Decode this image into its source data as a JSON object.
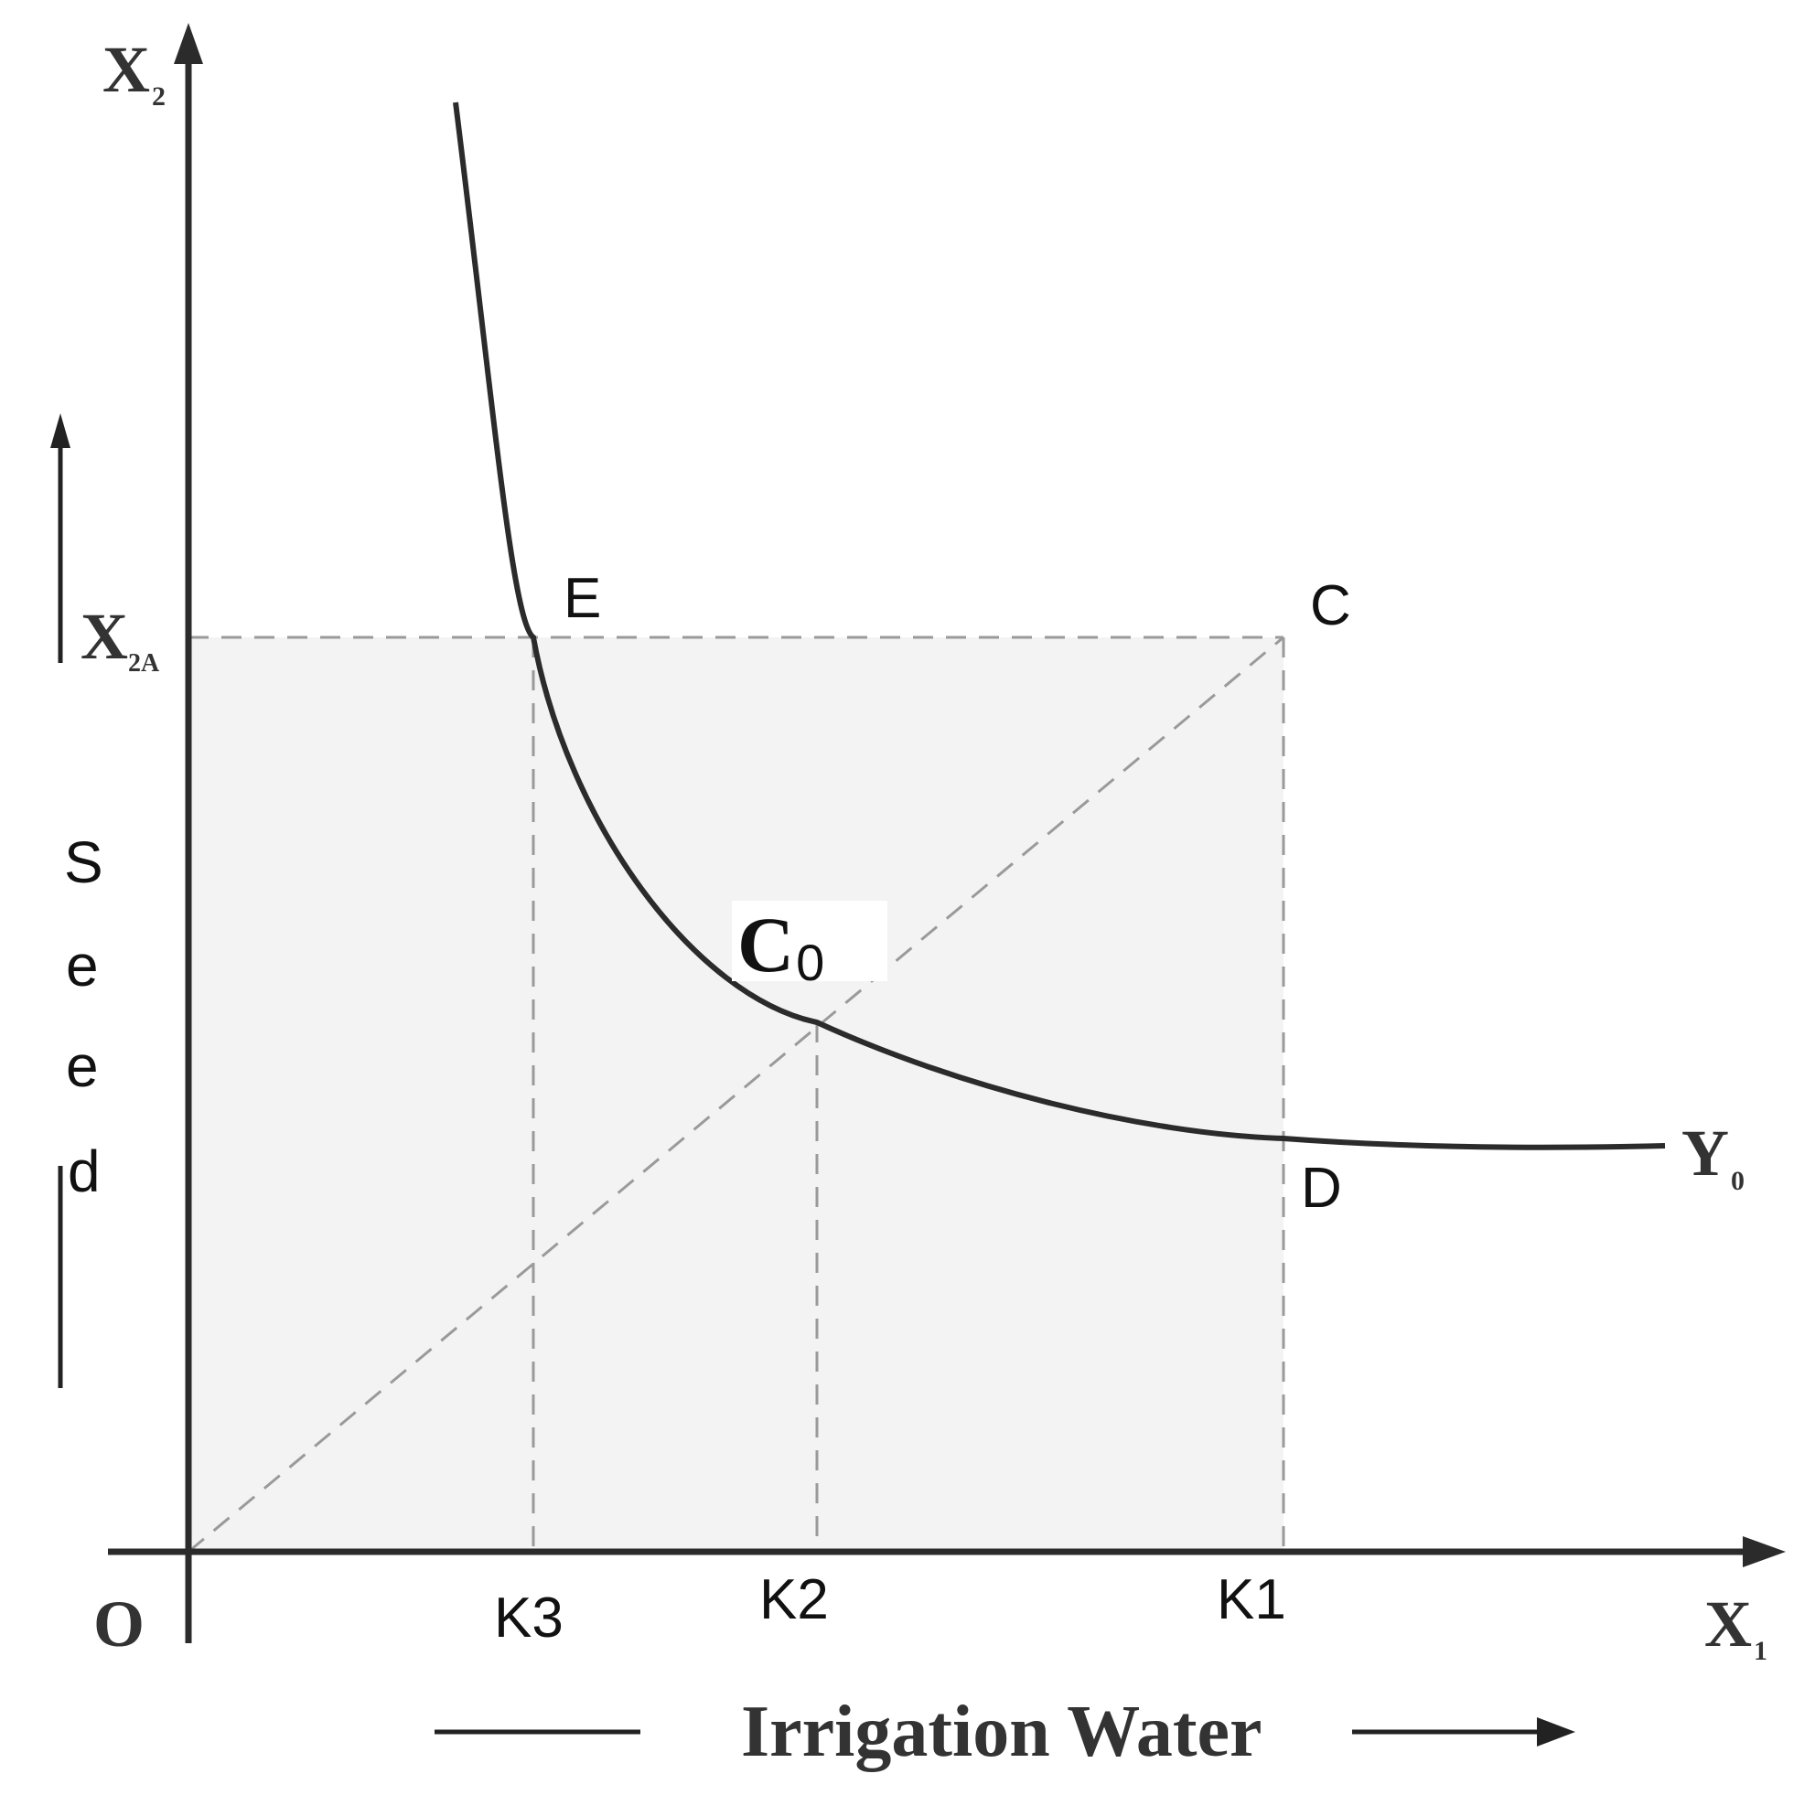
{
  "colors": {
    "shade": "#f3f3f3",
    "axis": "#2b2b2b",
    "dashed": "#9a9a9a"
  },
  "labels": {
    "y_axis": {
      "main": "X",
      "sub": "2"
    },
    "x_axis": {
      "main": "X",
      "sub": "1"
    },
    "x2a": {
      "main": "X",
      "sub": "2A"
    },
    "origin": "O",
    "curve": {
      "main": "Y",
      "sub": "0"
    },
    "point_e": "E",
    "point_c": "C",
    "point_d": "D",
    "point_c0": {
      "main": "C",
      "sub": "0"
    },
    "tick_k3": "K3",
    "tick_k2": "K2",
    "tick_k1": "K1",
    "x_title": "Irrigation Water",
    "y_title_letters": [
      "S",
      "e",
      "e",
      "d"
    ]
  }
}
